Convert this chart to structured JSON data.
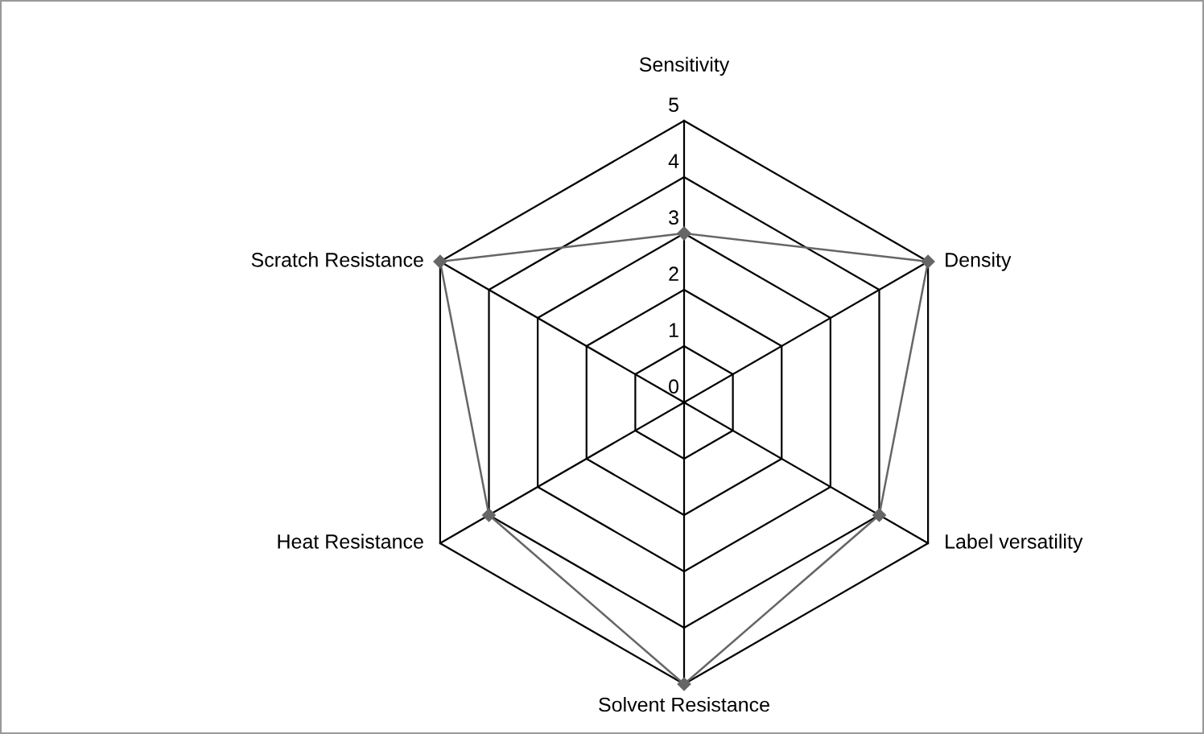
{
  "chart_data": {
    "type": "radar",
    "categories": [
      "Sensitivity",
      "Density",
      "Label versatility",
      "Solvent Resistance",
      "Heat Resistance",
      "Scratch Resistance"
    ],
    "series": [
      {
        "color": "#666666",
        "values": [
          3,
          5,
          4,
          5,
          4,
          5
        ]
      }
    ],
    "ylim": [
      0,
      5
    ],
    "yticks": [
      0,
      1,
      2,
      3,
      4,
      5
    ],
    "grid": true,
    "marker": "diamond"
  }
}
